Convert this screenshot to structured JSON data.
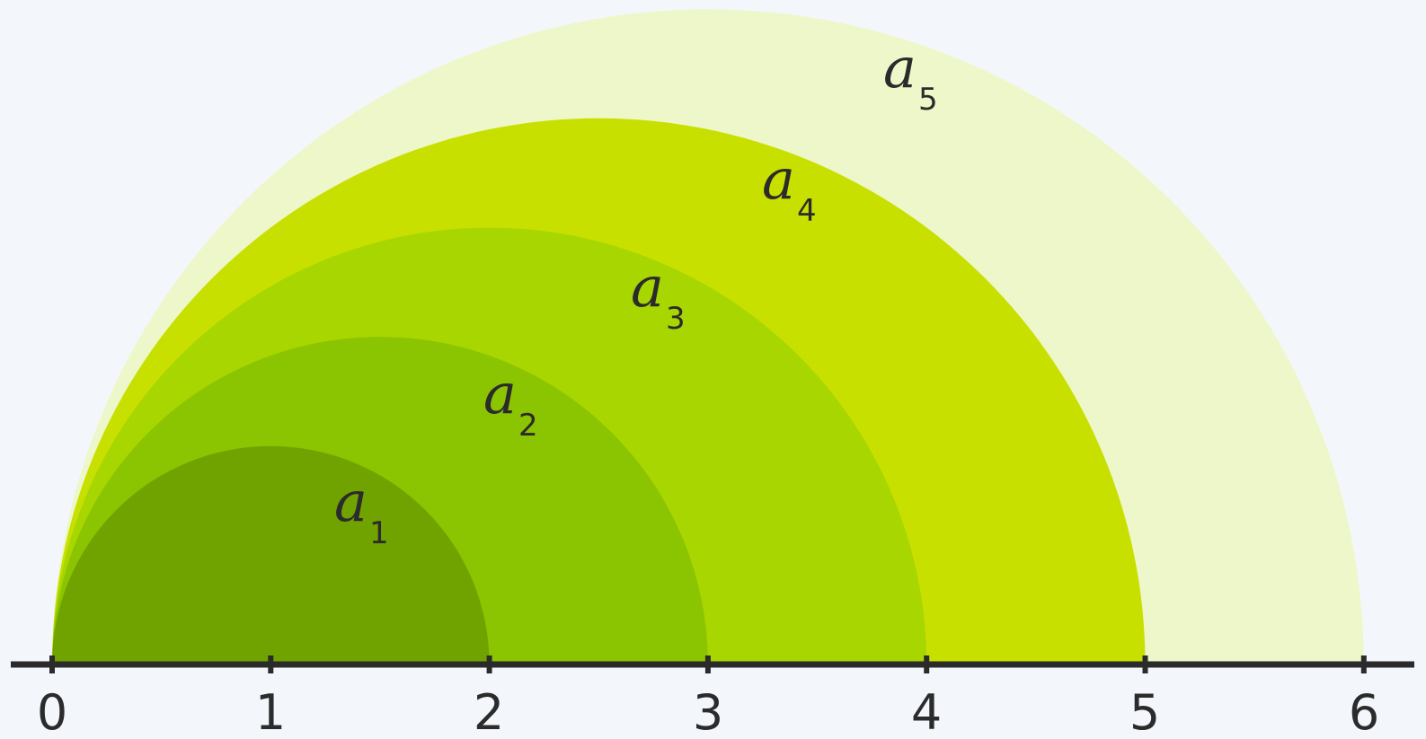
{
  "diagram": {
    "axis": {
      "tick_labels": [
        "0",
        "1",
        "2",
        "3",
        "4",
        "5",
        "6"
      ],
      "line_color": "#2b2b2b"
    },
    "semicircles": [
      {
        "label_base": "a",
        "label_sub": "1",
        "color": "#70a300",
        "diameter": 2
      },
      {
        "label_base": "a",
        "label_sub": "2",
        "color": "#8bc400",
        "diameter": 3
      },
      {
        "label_base": "a",
        "label_sub": "3",
        "color": "#a8d600",
        "diameter": 4
      },
      {
        "label_base": "a",
        "label_sub": "4",
        "color": "#c8e000",
        "diameter": 5
      },
      {
        "label_base": "a",
        "label_sub": "5",
        "color": "#eef7c9",
        "diameter": 6
      }
    ],
    "background_color": "#f3f7fc"
  }
}
